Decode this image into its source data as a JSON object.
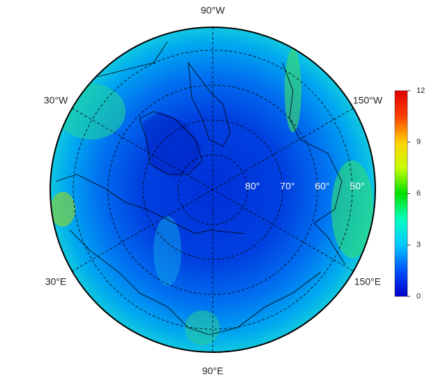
{
  "map": {
    "longitude_labels": {
      "top": "90°W",
      "upper_right": "150°W",
      "lower_right": "150°E",
      "bottom": "90°E",
      "lower_left": "30°E",
      "upper_left": "30°W"
    },
    "latitude_labels": [
      "80°",
      "70°",
      "60°",
      "50°"
    ]
  },
  "colorbar": {
    "range": [
      0,
      12
    ],
    "ticks": [
      0,
      3,
      6,
      9,
      12
    ],
    "colors": [
      "#0000c8",
      "#0050ff",
      "#00c8ff",
      "#00ffc0",
      "#00e000",
      "#c8ff00",
      "#ffd000",
      "#ff4000",
      "#e00000"
    ]
  }
}
